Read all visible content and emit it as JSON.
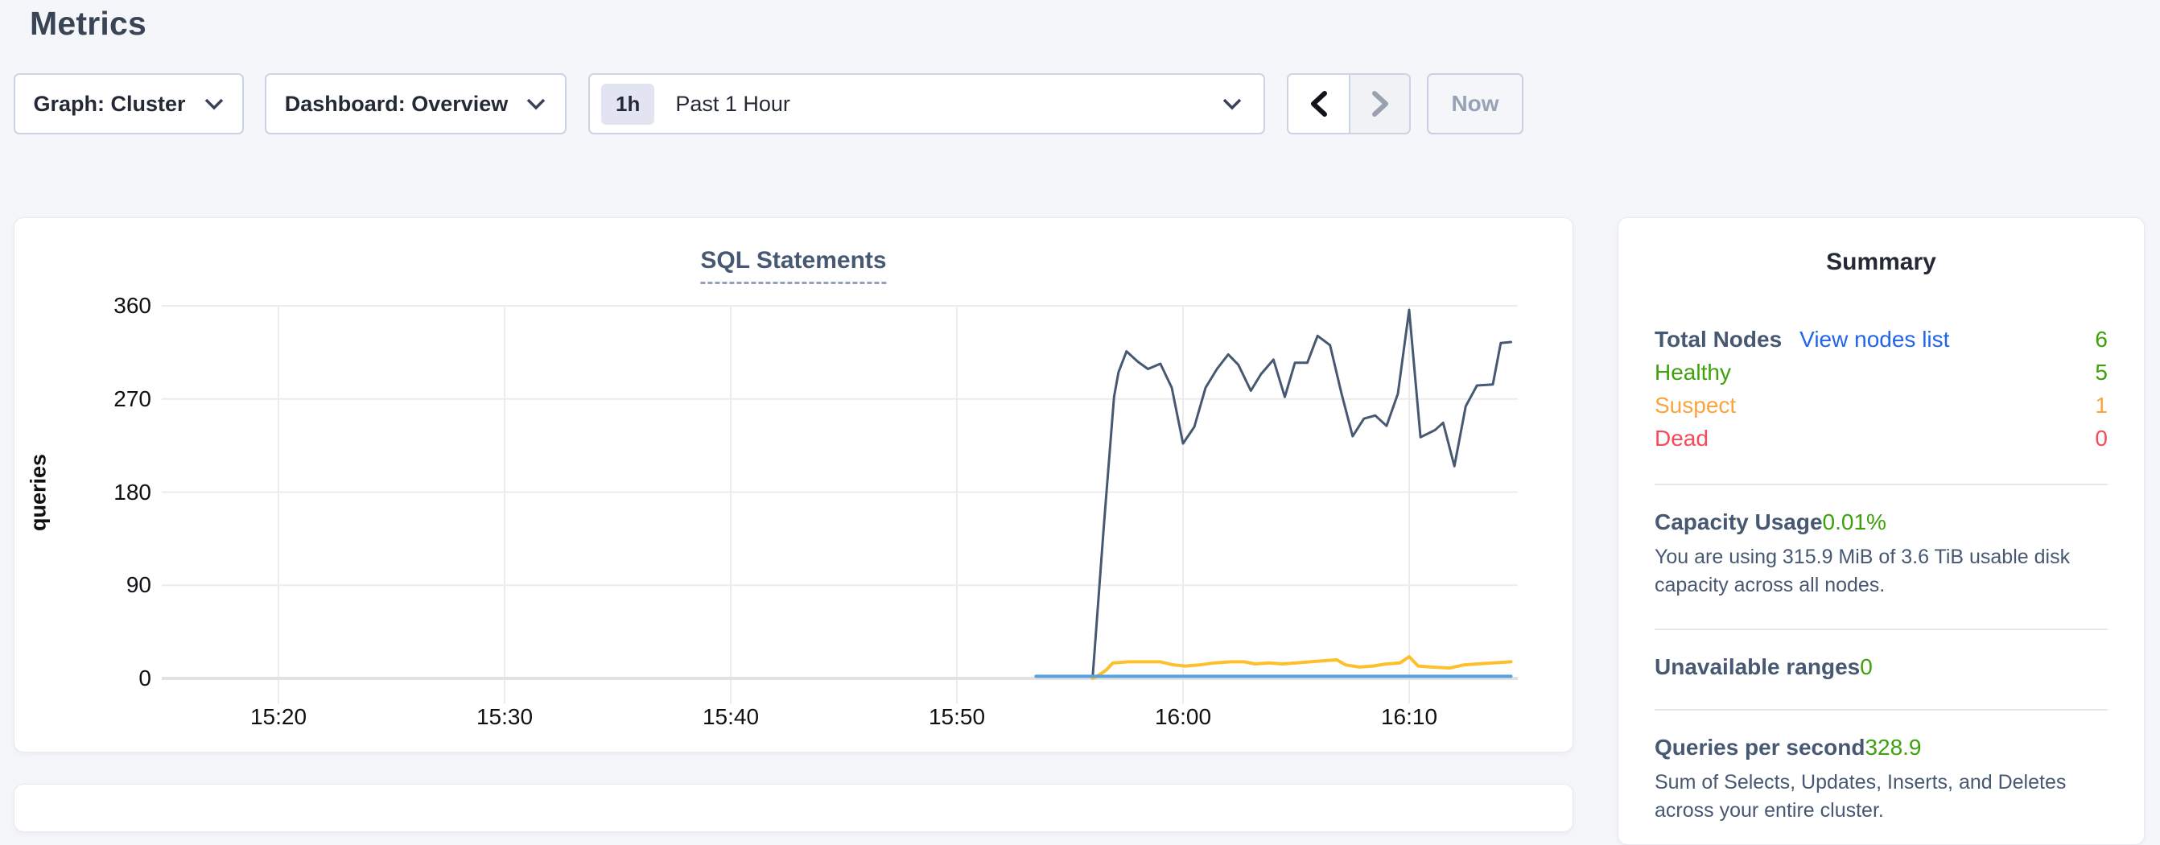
{
  "page": {
    "title": "Metrics"
  },
  "toolbar": {
    "graph_dropdown_label": "Graph: Cluster",
    "dashboard_dropdown_label": "Dashboard: Overview",
    "time_selector": {
      "badge": "1h",
      "label": "Past 1 Hour"
    },
    "now_label": "Now"
  },
  "chart_data": {
    "type": "line",
    "title": "SQL Statements",
    "ylabel": "queries",
    "xlabel": "",
    "grid": true,
    "legend_position": "none",
    "ylim": [
      0,
      360
    ],
    "yticks": [
      360,
      270,
      180,
      90,
      0
    ],
    "xticks": [
      {
        "t": 20,
        "label": "15:20"
      },
      {
        "t": 30,
        "label": "15:30"
      },
      {
        "t": 40,
        "label": "15:40"
      },
      {
        "t": 50,
        "label": "15:50"
      },
      {
        "t": 60,
        "label": "16:00"
      },
      {
        "t": 70,
        "label": "16:10"
      }
    ],
    "x_axis_note": "t = minutes after 15:00, domain 15:15 to 16:15",
    "xlim": [
      15.1,
      75.1
    ],
    "series": [
      {
        "name": "series-1",
        "color": "#475872",
        "width": 3,
        "points": [
          [
            56.0,
            0
          ],
          [
            56.5,
            148
          ],
          [
            56.95,
            272
          ],
          [
            57.15,
            296
          ],
          [
            57.5,
            316
          ],
          [
            58.0,
            306
          ],
          [
            58.45,
            299
          ],
          [
            59.0,
            304
          ],
          [
            59.5,
            281
          ],
          [
            60.0,
            227
          ],
          [
            60.5,
            243
          ],
          [
            61.0,
            281
          ],
          [
            61.5,
            299
          ],
          [
            62.0,
            313
          ],
          [
            62.45,
            303
          ],
          [
            63.0,
            278
          ],
          [
            63.45,
            294
          ],
          [
            64.0,
            308
          ],
          [
            64.5,
            272
          ],
          [
            64.95,
            305
          ],
          [
            65.5,
            305
          ],
          [
            65.95,
            331
          ],
          [
            66.5,
            322
          ],
          [
            67.0,
            276
          ],
          [
            67.5,
            234
          ],
          [
            68.0,
            251
          ],
          [
            68.5,
            254
          ],
          [
            69.0,
            244
          ],
          [
            69.5,
            275
          ],
          [
            70.0,
            356
          ],
          [
            70.5,
            233
          ],
          [
            71.15,
            240
          ],
          [
            71.5,
            247
          ],
          [
            72.0,
            205
          ],
          [
            72.5,
            263
          ],
          [
            73.0,
            283
          ],
          [
            73.7,
            284
          ],
          [
            74.05,
            324
          ],
          [
            74.5,
            325
          ]
        ]
      },
      {
        "name": "series-2",
        "color": "#fdc02a",
        "width": 4,
        "points": [
          [
            56.0,
            0
          ],
          [
            56.2,
            2
          ],
          [
            56.6,
            8
          ],
          [
            56.9,
            15
          ],
          [
            57.6,
            16
          ],
          [
            58.3,
            16
          ],
          [
            59.0,
            16
          ],
          [
            59.6,
            13
          ],
          [
            60.1,
            12
          ],
          [
            60.7,
            13
          ],
          [
            61.4,
            15
          ],
          [
            62.1,
            16
          ],
          [
            62.7,
            16
          ],
          [
            63.2,
            14
          ],
          [
            63.8,
            15
          ],
          [
            64.4,
            14
          ],
          [
            65.0,
            15
          ],
          [
            65.6,
            16
          ],
          [
            66.2,
            17
          ],
          [
            66.8,
            18
          ],
          [
            67.2,
            13
          ],
          [
            67.8,
            11
          ],
          [
            68.4,
            12
          ],
          [
            69.0,
            14
          ],
          [
            69.6,
            15
          ],
          [
            70.0,
            21
          ],
          [
            70.4,
            12
          ],
          [
            71.0,
            11
          ],
          [
            71.8,
            10
          ],
          [
            72.4,
            13
          ],
          [
            73.0,
            14
          ],
          [
            73.7,
            15
          ],
          [
            74.5,
            16
          ]
        ]
      },
      {
        "name": "series-3",
        "color": "#57a1dd",
        "width": 4,
        "points": [
          [
            53.5,
            2
          ],
          [
            74.5,
            2
          ]
        ]
      }
    ]
  },
  "summary": {
    "title": "Summary",
    "total_nodes": {
      "label": "Total Nodes",
      "link": "View nodes list",
      "value": "6"
    },
    "healthy": {
      "label": "Healthy",
      "value": "5"
    },
    "suspect": {
      "label": "Suspect",
      "value": "1"
    },
    "dead": {
      "label": "Dead",
      "value": "0"
    },
    "capacity": {
      "label": "Capacity Usage",
      "value": "0.01%",
      "description": "You are using 315.9 MiB of 3.6 TiB usable disk capacity across all nodes."
    },
    "unavailable_ranges": {
      "label": "Unavailable ranges",
      "value": "0"
    },
    "qps": {
      "label": "Queries per second",
      "value": "328.9",
      "description": "Sum of Selects, Updates, Inserts, and Deletes across your entire cluster."
    }
  },
  "colors": {
    "accent_green": "#3da10c",
    "accent_orange": "#f9a43d",
    "accent_red": "#f8485a",
    "link_blue": "#2065eb",
    "series_navy": "#475872",
    "series_yellow": "#fdc02a",
    "series_blue": "#57a1dd",
    "gridline": "#ececee"
  }
}
